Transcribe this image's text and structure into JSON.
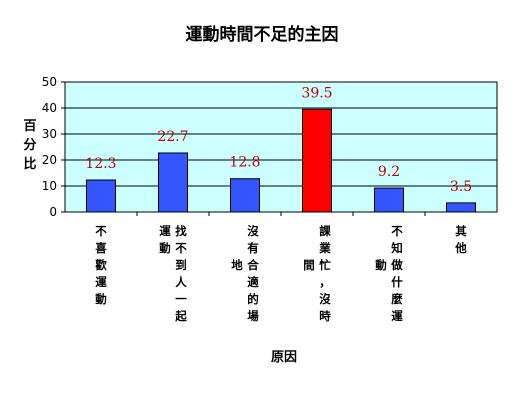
{
  "chart_data": {
    "type": "bar",
    "title": "運動時間不足的主因",
    "ylabel": "百分比",
    "xlabel": "原因",
    "ylim": [
      0,
      50
    ],
    "yticks": [
      0,
      10,
      20,
      30,
      40,
      50
    ],
    "grid": true,
    "categories": [
      {
        "columns": [
          "不喜歡運動"
        ]
      },
      {
        "columns": [
          "找不到人一起",
          "運動"
        ]
      },
      {
        "columns": [
          "沒有合適的場",
          "地"
        ]
      },
      {
        "columns": [
          "課業忙，沒時",
          "間"
        ]
      },
      {
        "columns": [
          "不知做什麼運",
          "動"
        ]
      },
      {
        "columns": [
          "其他"
        ]
      }
    ],
    "values": [
      12.3,
      22.7,
      12.8,
      39.5,
      9.2,
      3.5
    ],
    "value_labels": [
      "12.3",
      "22.7",
      "12.8",
      "39.5",
      "9.2",
      "3.5"
    ],
    "bar_colors": [
      "#3355ff",
      "#3355ff",
      "#3355ff",
      "#ff0000",
      "#3355ff",
      "#3355ff"
    ],
    "plot_background": "#ccffff",
    "label_color": "#c00000"
  }
}
